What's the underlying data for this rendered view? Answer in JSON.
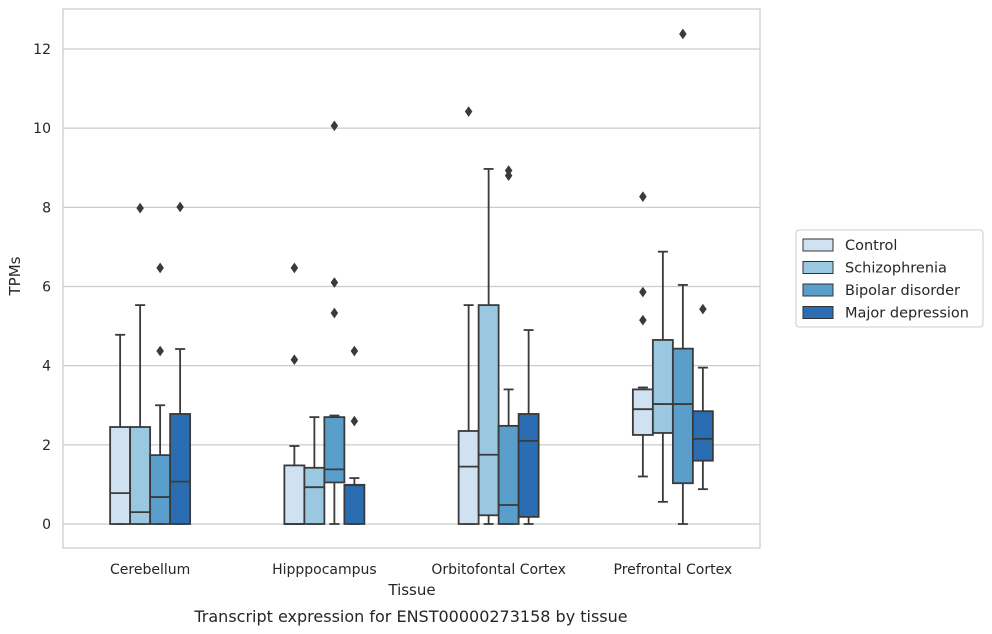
{
  "chart_data": {
    "type": "box",
    "title": "",
    "caption": "Transcript expression for ENST00000273158 by tissue",
    "xlabel": "Tissue",
    "ylabel": "TPMs",
    "ylim": [
      -0.6,
      13.0
    ],
    "yticks": [
      0,
      2,
      4,
      6,
      8,
      10,
      12
    ],
    "grid": "horizontal",
    "legend_position": "right",
    "categories": [
      "Cerebellum",
      "Hipppocampus",
      "Orbitofontal Cortex",
      "Prefrontal Cortex"
    ],
    "series": [
      {
        "name": "Control",
        "color": "#d0e1f2",
        "boxes": [
          {
            "whislo": 0,
            "q1": 0,
            "med": 0.78,
            "q3": 2.45,
            "whishi": 4.78,
            "fliers": []
          },
          {
            "whislo": 0,
            "q1": 0,
            "med": 0,
            "q3": 1.48,
            "whishi": 1.97,
            "fliers": [
              4.15,
              6.47
            ]
          },
          {
            "whislo": 0,
            "q1": 0,
            "med": 1.45,
            "q3": 2.35,
            "whishi": 5.53,
            "fliers": [
              10.42
            ]
          },
          {
            "whislo": 1.2,
            "q1": 2.25,
            "med": 2.9,
            "q3": 3.4,
            "whishi": 3.45,
            "fliers": [
              5.15,
              5.86,
              8.27
            ]
          }
        ]
      },
      {
        "name": "Schizophrenia",
        "color": "#9ac8e0",
        "boxes": [
          {
            "whislo": 0,
            "q1": 0,
            "med": 0.3,
            "q3": 2.45,
            "whishi": 5.53,
            "fliers": [
              7.98
            ]
          },
          {
            "whislo": 0,
            "q1": 0,
            "med": 0.93,
            "q3": 1.42,
            "whishi": 2.7,
            "fliers": []
          },
          {
            "whislo": 0,
            "q1": 0.22,
            "med": 1.75,
            "q3": 5.53,
            "whishi": 8.97,
            "fliers": []
          },
          {
            "whislo": 0.56,
            "q1": 2.3,
            "med": 3.03,
            "q3": 4.65,
            "whishi": 6.88,
            "fliers": []
          }
        ]
      },
      {
        "name": "Bipolar disorder",
        "color": "#5a9ecc",
        "boxes": [
          {
            "whislo": 0,
            "q1": 0,
            "med": 0.68,
            "q3": 1.74,
            "whishi": 3.0,
            "fliers": [
              4.37,
              6.47
            ]
          },
          {
            "whislo": 0,
            "q1": 1.05,
            "med": 1.38,
            "q3": 2.7,
            "whishi": 2.74,
            "fliers": [
              5.33,
              6.1,
              10.06
            ]
          },
          {
            "whislo": 0,
            "q1": 0,
            "med": 0.48,
            "q3": 2.48,
            "whishi": 3.4,
            "fliers": [
              8.8,
              8.93
            ]
          },
          {
            "whislo": 0,
            "q1": 1.03,
            "med": 3.03,
            "q3": 4.43,
            "whishi": 6.04,
            "fliers": [
              12.38
            ]
          }
        ]
      },
      {
        "name": "Major depression",
        "color": "#2a6db3",
        "boxes": [
          {
            "whislo": 0,
            "q1": 0,
            "med": 1.07,
            "q3": 2.78,
            "whishi": 4.42,
            "fliers": [
              8.01
            ]
          },
          {
            "whislo": 0,
            "q1": 0,
            "med": 0.98,
            "q3": 0.99,
            "whishi": 1.16,
            "fliers": [
              2.6,
              4.37
            ]
          },
          {
            "whislo": 0,
            "q1": 0.18,
            "med": 2.1,
            "q3": 2.78,
            "whishi": 4.9,
            "fliers": []
          },
          {
            "whislo": 0.88,
            "q1": 1.6,
            "med": 2.15,
            "q3": 2.85,
            "whishi": 3.95,
            "fliers": [
              5.43
            ]
          }
        ]
      }
    ]
  }
}
